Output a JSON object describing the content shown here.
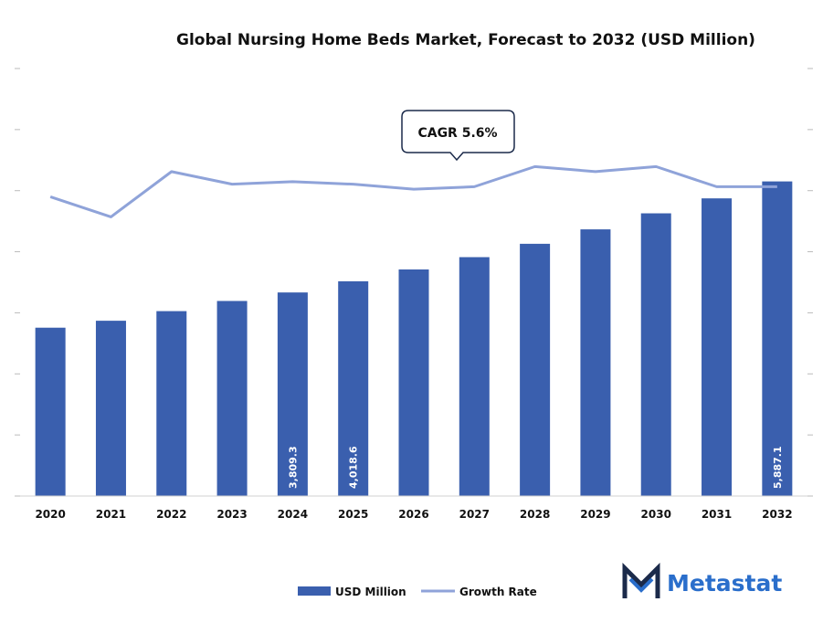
{
  "chart_data": {
    "type": "bar",
    "title": "Global Nursing Home Beds Market, Forecast to 2032 (USD Million)",
    "categories": [
      "2020",
      "2021",
      "2022",
      "2023",
      "2024",
      "2025",
      "2026",
      "2027",
      "2028",
      "2029",
      "2030",
      "2031",
      "2032"
    ],
    "series": [
      {
        "name": "USD Million",
        "type": "bar",
        "color": "#3a5fae",
        "values": [
          3150,
          3280,
          3460,
          3650,
          3809.3,
          4018.6,
          4240,
          4470,
          4720,
          4990,
          5290,
          5570,
          5887.1
        ],
        "data_labels": [
          "",
          "",
          "",
          "",
          "3,809.3",
          "4,018.6",
          "",
          "",
          "",
          "",
          "",
          "",
          "5,887.1"
        ]
      },
      {
        "name": "Growth Rate",
        "type": "line",
        "color": "#8fa3d9",
        "values": [
          4.9,
          4.1,
          5.9,
          5.4,
          5.5,
          5.4,
          5.2,
          5.3,
          6.1,
          5.9,
          6.1,
          5.3,
          5.3
        ]
      }
    ],
    "ylim": [
      0,
      8000
    ],
    "y2lim": [
      -7,
      10
    ],
    "grid": false,
    "legend_position": "bottom"
  },
  "annotation": {
    "text": "CAGR 5.6%"
  },
  "brand": {
    "name": "Metastat",
    "icon": "metastat-m-logo-icon",
    "color": "#2a6ecb"
  }
}
